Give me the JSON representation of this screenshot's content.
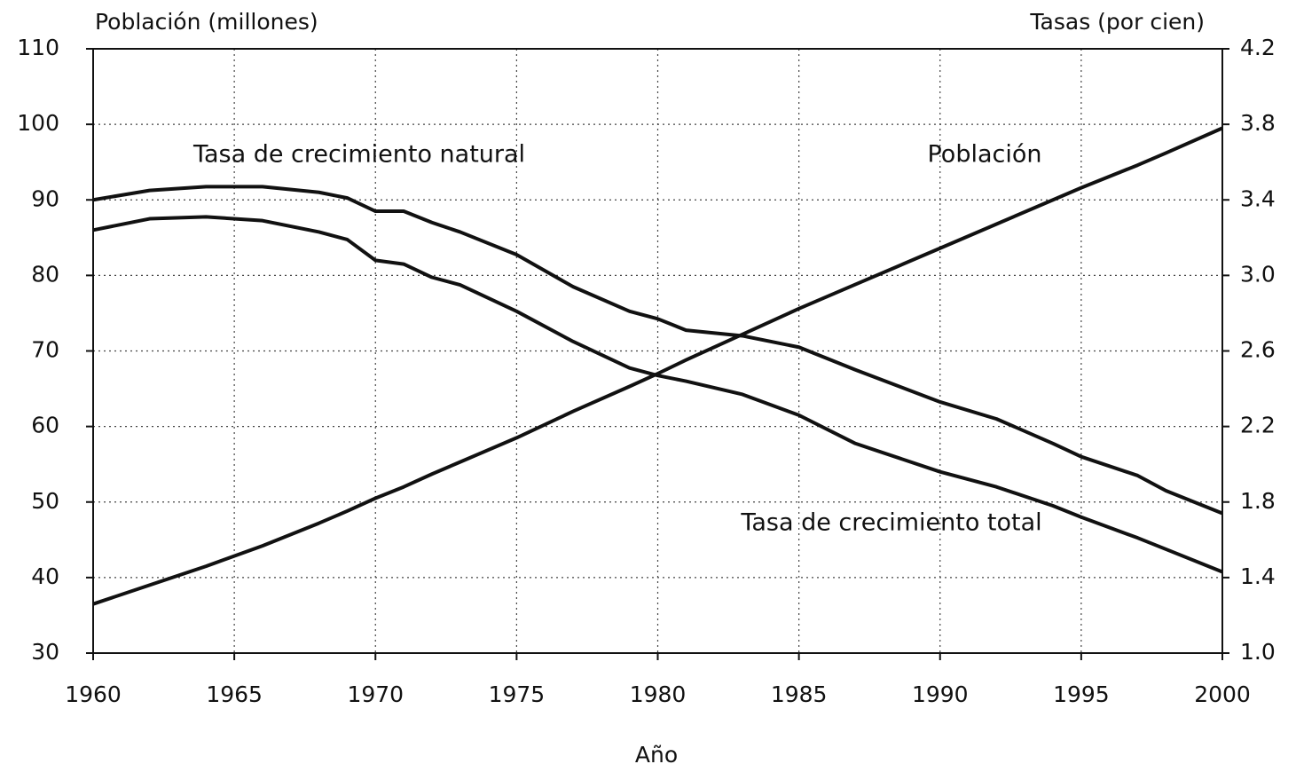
{
  "chart_data": {
    "type": "line",
    "y_label": "Población (millones)",
    "y2_label": "Tasas (por cien)",
    "x_label": "Año",
    "x": [
      1960,
      1962,
      1964,
      1966,
      1968,
      1969,
      1970,
      1971,
      1972,
      1973,
      1975,
      1977,
      1979,
      1980,
      1981,
      1983,
      1985,
      1987,
      1990,
      1992,
      1994,
      1995,
      1997,
      1998,
      2000
    ],
    "series": [
      {
        "name": "Población",
        "color": "#111111",
        "values": [
          36.5,
          39,
          41.5,
          44.2,
          47.2,
          48.8,
          50.5,
          52,
          53.7,
          55.3,
          58.5,
          62,
          65.3,
          67,
          68.8,
          72.2,
          75.6,
          78.8,
          83.6,
          86.8,
          90,
          91.6,
          94.6,
          96.2,
          99.5
        ]
      },
      {
        "name": "Tasa de crecimiento natural",
        "color": "#111111",
        "axis": "y2",
        "values": [
          3.4,
          3.45,
          3.47,
          3.47,
          3.44,
          3.41,
          3.34,
          3.34,
          3.28,
          3.23,
          3.11,
          2.94,
          2.81,
          2.77,
          2.71,
          2.68,
          2.62,
          2.5,
          2.33,
          2.24,
          2.11,
          2.04,
          1.94,
          1.86,
          1.74
        ]
      },
      {
        "name": "Tasa de crecimiento total",
        "color": "#111111",
        "axis": "y2",
        "values": [
          3.24,
          3.3,
          3.31,
          3.29,
          3.23,
          3.19,
          3.08,
          3.06,
          2.99,
          2.95,
          2.81,
          2.65,
          2.51,
          2.47,
          2.44,
          2.37,
          2.26,
          2.11,
          1.96,
          1.88,
          1.78,
          1.72,
          1.61,
          1.55,
          1.43
        ]
      }
    ],
    "xlim": [
      1960,
      2000
    ],
    "xticks": [
      1960,
      1965,
      1970,
      1975,
      1980,
      1985,
      1990,
      1995,
      2000
    ],
    "ylim": [
      30,
      110
    ],
    "yticks": [
      30,
      40,
      50,
      60,
      70,
      80,
      90,
      100,
      110
    ],
    "y2lim": [
      1.0,
      4.2
    ],
    "y2ticks": [
      {
        "value": 1.0,
        "label": "1.0"
      },
      1.4,
      1.8,
      2.2,
      2.6,
      {
        "value": 3.0,
        "label": "3.0"
      },
      3.4,
      3.8,
      4.2
    ],
    "grid": true
  }
}
